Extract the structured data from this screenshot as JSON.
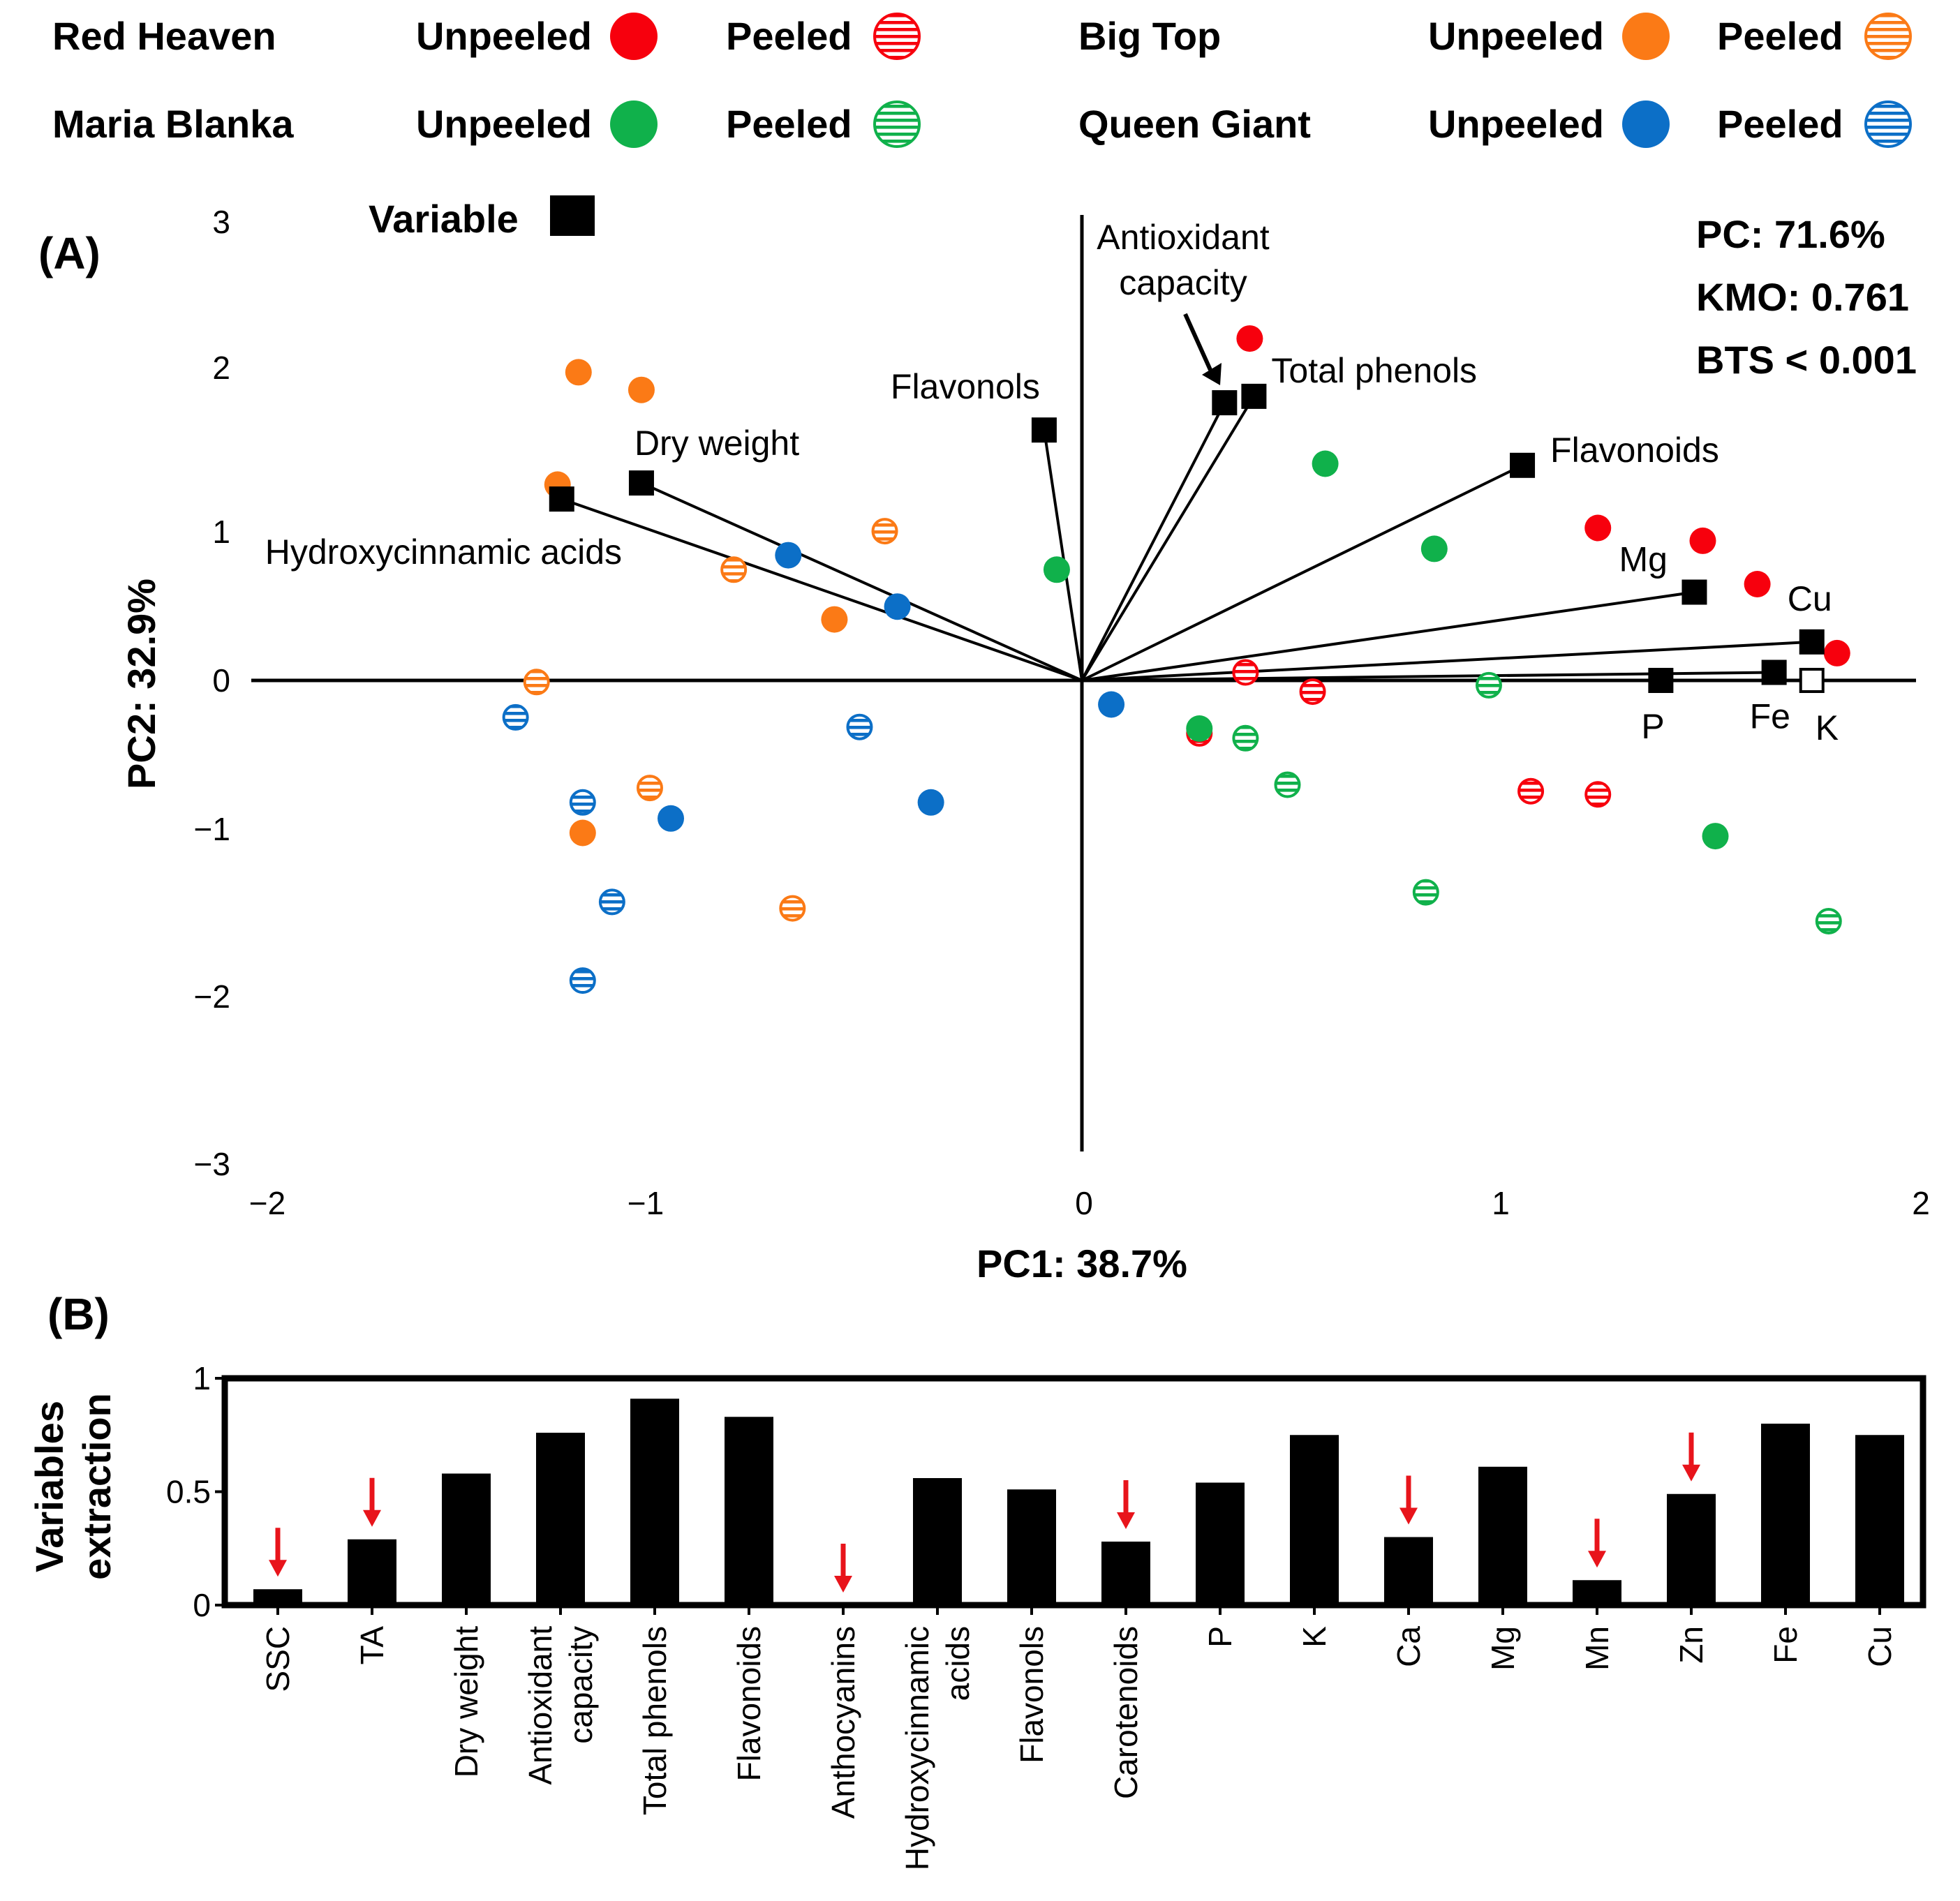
{
  "colors": {
    "red": "#f7000d",
    "orange": "#fb7a16",
    "green": "#10b14b",
    "blue": "#0c6fc7",
    "arrow": "#e8141b",
    "black": "#000000"
  },
  "legend": {
    "groups": [
      {
        "cultivar": "Red Heaven",
        "color_key": "red"
      },
      {
        "cultivar": "Big Top",
        "color_key": "orange"
      },
      {
        "cultivar": "Maria Blanka",
        "color_key": "green"
      },
      {
        "cultivar": "Queen Giant",
        "color_key": "blue"
      }
    ],
    "unpeeled_label": "Unpeeled",
    "peeled_label": "Peeled",
    "variable_label": "Variable"
  },
  "panel_a": {
    "label": "(A)",
    "stats": [
      "PC: 71.6%",
      "KMO: 0.761",
      "BTS < 0.001"
    ],
    "antioxidant_annotation": [
      "Antioxidant",
      "capacity"
    ]
  },
  "panel_b": {
    "label": "(B)"
  },
  "chart_data": [
    {
      "type": "scatter",
      "title": "",
      "xlabel": "PC1: 38.7%",
      "ylabel": "PC2: 32.9%",
      "xlim": [
        -2,
        2
      ],
      "ylim": [
        -3,
        3
      ],
      "xticks": [
        "−2",
        "−1",
        "0",
        "1",
        "2"
      ],
      "yticks": [
        "3",
        "2",
        "1",
        "0",
        "−1",
        "−2",
        "−3"
      ],
      "series": [
        {
          "name": "Red Heaven Unpeeled",
          "color_key": "red",
          "marker": "filled",
          "points": [
            [
              0.4,
              2.13
            ],
            [
              1.23,
              0.95
            ],
            [
              1.48,
              0.87
            ],
            [
              1.61,
              0.6
            ],
            [
              1.8,
              0.17
            ]
          ]
        },
        {
          "name": "Red Heaven Peeled",
          "color_key": "red",
          "marker": "striped",
          "points": [
            [
              0.39,
              0.05
            ],
            [
              0.55,
              -0.07
            ],
            [
              1.07,
              -0.69
            ],
            [
              1.23,
              -0.71
            ],
            [
              0.28,
              -0.33
            ]
          ]
        },
        {
          "name": "Big Top Unpeeled",
          "color_key": "orange",
          "marker": "filled",
          "points": [
            [
              -1.2,
              1.92
            ],
            [
              -1.05,
              1.81
            ],
            [
              -1.25,
              1.22
            ],
            [
              -0.59,
              0.38
            ],
            [
              -1.19,
              -0.95
            ]
          ]
        },
        {
          "name": "Big Top Peeled",
          "color_key": "orange",
          "marker": "striped",
          "points": [
            [
              -0.47,
              0.93
            ],
            [
              -0.83,
              0.69
            ],
            [
              -1.3,
              -0.01
            ],
            [
              -1.03,
              -0.67
            ],
            [
              -0.69,
              -1.42
            ]
          ]
        },
        {
          "name": "Maria Blanka Unpeeled",
          "color_key": "green",
          "marker": "filled",
          "points": [
            [
              0.58,
              1.35
            ],
            [
              0.84,
              0.82
            ],
            [
              -0.06,
              0.69
            ],
            [
              0.28,
              -0.3
            ],
            [
              1.51,
              -0.97
            ]
          ]
        },
        {
          "name": "Maria Blanka Peeled",
          "color_key": "green",
          "marker": "striped",
          "points": [
            [
              0.97,
              -0.03
            ],
            [
              0.39,
              -0.36
            ],
            [
              0.49,
              -0.65
            ],
            [
              0.82,
              -1.32
            ],
            [
              1.78,
              -1.5
            ]
          ]
        },
        {
          "name": "Queen Giant Unpeeled",
          "color_key": "blue",
          "marker": "filled",
          "points": [
            [
              -0.7,
              0.78
            ],
            [
              -0.44,
              0.46
            ],
            [
              0.07,
              -0.15
            ],
            [
              -0.36,
              -0.76
            ],
            [
              -0.98,
              -0.86
            ]
          ]
        },
        {
          "name": "Queen Giant Peeled",
          "color_key": "blue",
          "marker": "striped",
          "points": [
            [
              -1.35,
              -0.23
            ],
            [
              -0.53,
              -0.29
            ],
            [
              -1.19,
              -0.76
            ],
            [
              -1.12,
              -1.38
            ],
            [
              -1.19,
              -1.87
            ]
          ]
        }
      ],
      "variables": [
        {
          "name": "Hydroxycinnamic acids",
          "x": -1.24,
          "y": 1.13,
          "filled": true
        },
        {
          "name": "Dry weight",
          "x": -1.05,
          "y": 1.23,
          "filled": true
        },
        {
          "name": "Flavonols",
          "x": -0.09,
          "y": 1.56,
          "filled": true
        },
        {
          "name": "Antioxidant capacity",
          "x": 0.34,
          "y": 1.73,
          "filled": true
        },
        {
          "name": "Total phenols",
          "x": 0.41,
          "y": 1.77,
          "filled": true
        },
        {
          "name": "Flavonoids",
          "x": 1.05,
          "y": 1.34,
          "filled": true
        },
        {
          "name": "Mg",
          "x": 1.46,
          "y": 0.55,
          "filled": true
        },
        {
          "name": "Cu",
          "x": 1.74,
          "y": 0.24,
          "filled": true
        },
        {
          "name": "Fe",
          "x": 1.65,
          "y": 0.05,
          "filled": true
        },
        {
          "name": "P",
          "x": 1.38,
          "y": 0.0,
          "filled": true
        },
        {
          "name": "K",
          "x": 1.74,
          "y": 0.0,
          "filled": false
        }
      ]
    },
    {
      "type": "bar",
      "title": "",
      "xlabel": "",
      "ylabel": "Variables extraction",
      "ylim": [
        0,
        1
      ],
      "yticks": [
        "0",
        "0.5",
        "1"
      ],
      "categories": [
        "SSC",
        "TA",
        "Dry weight",
        "Antioxidant capacity",
        "Total phenols",
        "Flavonoids",
        "Anthocyanins",
        "Hydroxycinnamic acids",
        "Flavonols",
        "Carotenoids",
        "P",
        "K",
        "Ca",
        "Mg",
        "Mn",
        "Zn",
        "Fe",
        "Cu"
      ],
      "category_label_lines": [
        [
          "SSC"
        ],
        [
          "TA"
        ],
        [
          "Dry weight"
        ],
        [
          "Antioxidant",
          "capacity"
        ],
        [
          "Total phenols"
        ],
        [
          "Flavonoids"
        ],
        [
          "Anthocyanins"
        ],
        [
          "Hydroxycinnamic",
          "acids"
        ],
        [
          "Flavonols"
        ],
        [
          "Carotenoids"
        ],
        [
          "P"
        ],
        [
          "K"
        ],
        [
          "Ca"
        ],
        [
          "Mg"
        ],
        [
          "Mn"
        ],
        [
          "Zn"
        ],
        [
          "Fe"
        ],
        [
          "Cu"
        ]
      ],
      "values": [
        0.07,
        0.29,
        0.58,
        0.76,
        0.91,
        0.83,
        0.0,
        0.56,
        0.51,
        0.28,
        0.54,
        0.75,
        0.3,
        0.61,
        0.11,
        0.49,
        0.8,
        0.75
      ],
      "low_extraction_flags": [
        true,
        true,
        false,
        false,
        false,
        false,
        true,
        false,
        false,
        true,
        false,
        false,
        true,
        false,
        true,
        true,
        false,
        false
      ]
    }
  ]
}
